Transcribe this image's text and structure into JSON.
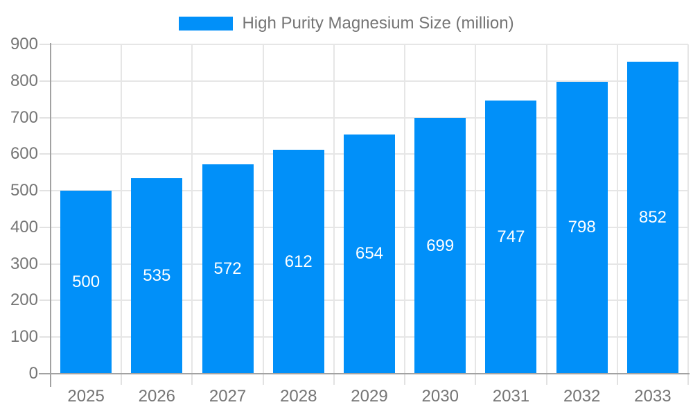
{
  "legend": {
    "label": "High Purity Magnesium Size (million)"
  },
  "chart_data": {
    "type": "bar",
    "title": "High Purity Magnesium Size (million)",
    "categories": [
      "2025",
      "2026",
      "2027",
      "2028",
      "2029",
      "2030",
      "2031",
      "2032",
      "2033"
    ],
    "values": [
      500,
      535,
      572,
      612,
      654,
      699,
      747,
      798,
      852
    ],
    "value_labels": [
      "500",
      "535",
      "572",
      "612",
      "654",
      "699",
      "747",
      "798",
      "852"
    ],
    "xlabel": "",
    "ylabel": "",
    "ylim": [
      0,
      900
    ],
    "ytick_step": 100,
    "ytick_labels": [
      "0",
      "100",
      "200",
      "300",
      "400",
      "500",
      "600",
      "700",
      "800",
      "900"
    ],
    "grid": true,
    "legend_position": "top-center",
    "colors": {
      "bar": "#0190f9",
      "value_label": "#ffffff",
      "axis_text": "#757575",
      "axis_line": "#a2a2a2",
      "gridline": "#e6e6e6",
      "background": "#ffffff"
    }
  }
}
